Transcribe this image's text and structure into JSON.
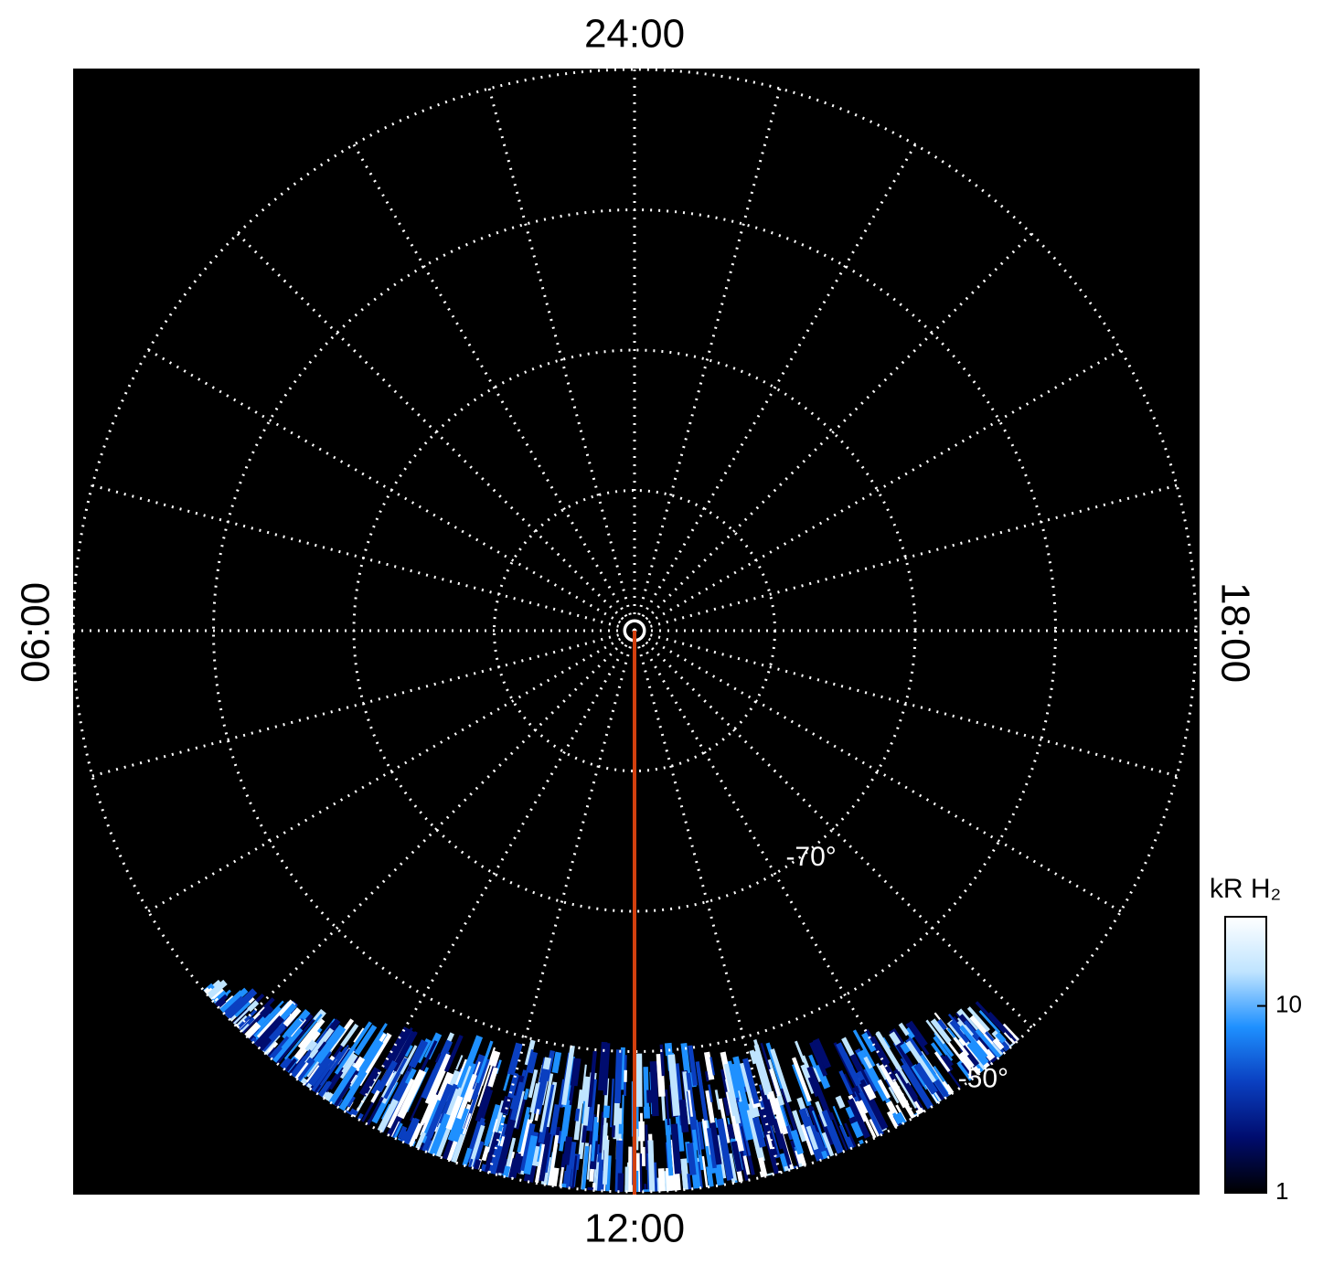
{
  "chart_data": {
    "type": "polar",
    "local_time_labels": {
      "top": "24:00",
      "bottom": "12:00",
      "left": "06:00",
      "right": "18:00"
    },
    "rlim": [
      -90,
      -50
    ],
    "latitude_circles": [
      -80,
      -70,
      -60,
      -50
    ],
    "latitude_labels": [
      {
        "value": -70,
        "label": "-70°"
      },
      {
        "value": -50,
        "label": "-50°"
      }
    ],
    "colorbar": {
      "title": "kR H₂",
      "ylim": [
        1,
        30
      ],
      "log": true,
      "yticks": [
        1,
        10
      ],
      "colors": [
        "#000000",
        "#000c6e",
        "#0a3fc0",
        "#1e90ff",
        "#bfe4ff",
        "#ffffff"
      ]
    },
    "highlight_color": "#d2400e"
  }
}
